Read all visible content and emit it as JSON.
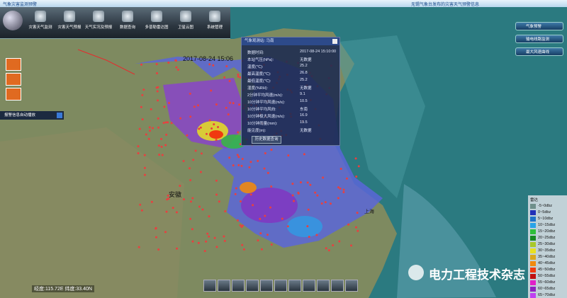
{
  "title_bar": {
    "left": "气象灾害监测预警",
    "right": "无锡气象台发布的灾害天气预警信息"
  },
  "toolbar": {
    "items": [
      "灾害天气监测",
      "灾害天气预报",
      "天气实况及预报",
      "数据查询",
      "多普勒雷达图",
      "卫星云图",
      "系统管理"
    ]
  },
  "map": {
    "timestamp": "2017-08-24 15:06",
    "labels": [
      "安徽",
      "上海"
    ]
  },
  "alert_panel": {
    "title": "报警信息自动播放"
  },
  "station_popup": {
    "title": "气象观测站: 马南",
    "rows": [
      [
        "数据时间:",
        "2017-08-24 15:10:00"
      ],
      [
        "本站气压(hPa):",
        "无数据"
      ],
      [
        "温度(℃):",
        "25.2"
      ],
      [
        "最高温度(℃):",
        "26.8"
      ],
      [
        "最低温度(℃):",
        "25.2"
      ],
      [
        "湿度(%RH):",
        "无数据"
      ],
      [
        "2分钟平均风速(m/s):",
        "9.1"
      ],
      [
        "10分钟平均风速(m/s):",
        "10.5"
      ],
      [
        "10分钟平均风向:",
        "东南"
      ],
      [
        "10分钟极大风速(m/s):",
        "16.9"
      ],
      [
        "10分钟雨量(mm):",
        "19.5"
      ],
      [
        "能见度(m):",
        "无数据"
      ]
    ],
    "button": "历史数据查询"
  },
  "right_buttons": [
    "气象预警",
    "输电线路监测",
    "最大风速曲线"
  ],
  "legend": {
    "title": "雷达",
    "items": [
      {
        "label": "-5~0dbz",
        "color": "#6f8f8a"
      },
      {
        "label": "0~5dbz",
        "color": "#2230b8"
      },
      {
        "label": "5~10dbz",
        "color": "#1f73c8"
      },
      {
        "label": "10~15dbz",
        "color": "#2aa3e8"
      },
      {
        "label": "15~20dbz",
        "color": "#2fbf3a"
      },
      {
        "label": "20~25dbz",
        "color": "#178a22"
      },
      {
        "label": "25~30dbz",
        "color": "#a8c82a"
      },
      {
        "label": "30~35dbz",
        "color": "#e8e020"
      },
      {
        "label": "35~40dbz",
        "color": "#d9a81c"
      },
      {
        "label": "40~45dbz",
        "color": "#f08a10"
      },
      {
        "label": "45~50dbz",
        "color": "#f03a10"
      },
      {
        "label": "50~55dbz",
        "color": "#c01010"
      },
      {
        "label": "55~60dbz",
        "color": "#e020c8"
      },
      {
        "label": "60~65dbz",
        "color": "#9020c0"
      },
      {
        "label": "65~70dbz",
        "color": "#c040f0"
      }
    ]
  },
  "status": {
    "coordinates": "经度:115.72E 纬度:33.40N"
  },
  "watermark": "电力工程技术杂志"
}
